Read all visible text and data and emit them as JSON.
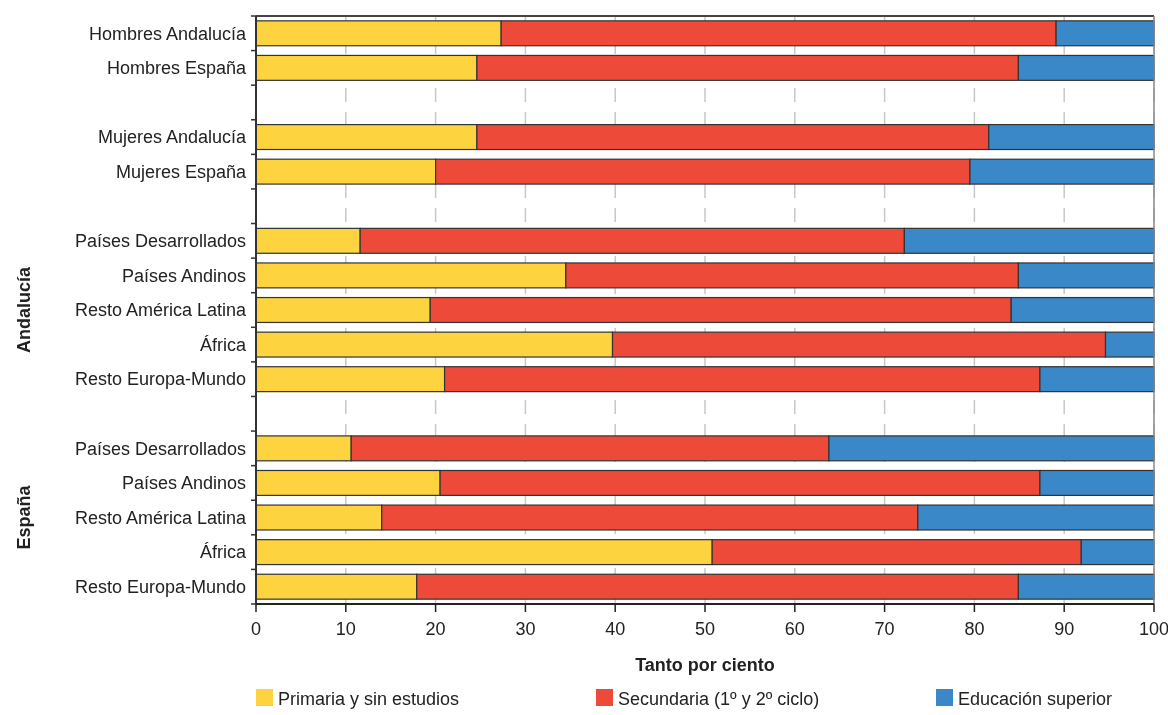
{
  "chart_data": {
    "type": "bar",
    "orientation": "horizontal",
    "stacked": true,
    "categories": [
      "Hombres Andalucía",
      "Hombres España",
      null,
      "Mujeres Andalucía",
      "Mujeres España",
      null,
      "Países Desarrollados",
      "Países Andinos",
      "Resto América Latina",
      "África",
      "Resto Europa-Mundo",
      null,
      "Países Desarrollados",
      "Países Andinos",
      "Resto América Latina",
      "África",
      "Resto Europa-Mundo"
    ],
    "series": [
      {
        "name": "Primaria y sin estudios",
        "color": "#fdd340",
        "values": [
          27.3,
          24.6,
          null,
          24.6,
          20.0,
          null,
          11.6,
          34.5,
          19.4,
          39.7,
          21.0,
          null,
          10.6,
          20.5,
          14.0,
          50.8,
          17.9
        ]
      },
      {
        "name": "Secundaria (1º y 2º ciclo)",
        "color": "#ee4a3a",
        "values": [
          61.8,
          60.3,
          null,
          57.0,
          59.5,
          null,
          60.6,
          50.4,
          64.7,
          54.9,
          66.3,
          null,
          53.2,
          66.8,
          59.7,
          41.1,
          67.0
        ]
      },
      {
        "name": "Educación superior",
        "color": "#3a88c8",
        "values": [
          10.9,
          15.1,
          null,
          18.4,
          20.5,
          null,
          27.8,
          15.1,
          15.9,
          5.4,
          12.7,
          null,
          36.2,
          12.7,
          26.3,
          8.1,
          15.1
        ]
      }
    ],
    "xlim": [
      0,
      100
    ],
    "xticks": [
      0,
      10,
      20,
      30,
      40,
      50,
      60,
      70,
      80,
      90,
      100
    ],
    "xlabel": "Tanto por ciento",
    "grid": "x",
    "legend": "bottom",
    "annotations": [
      "Andalucía",
      "España"
    ]
  }
}
